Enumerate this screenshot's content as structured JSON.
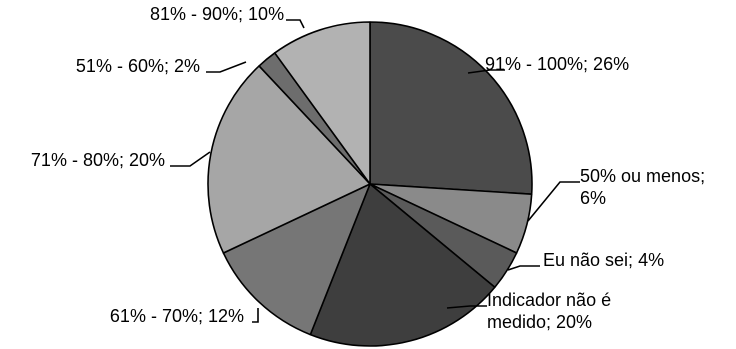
{
  "chart_data": {
    "type": "pie",
    "title": "",
    "slices": [
      {
        "label": "91% - 100%; 26%",
        "value": 26,
        "color": "#4b4b4b"
      },
      {
        "label": "50% ou menos; 6%",
        "value": 6,
        "color": "#8a8a8a"
      },
      {
        "label": "Eu não sei; 4%",
        "value": 4,
        "color": "#5a5a5a"
      },
      {
        "label": "Indicador não é medido; 20%",
        "value": 20,
        "color": "#3e3e3e"
      },
      {
        "label": "61% - 70%; 12%",
        "value": 12,
        "color": "#767676"
      },
      {
        "label": "71% - 80%; 20%",
        "value": 20,
        "color": "#a6a6a6"
      },
      {
        "label": "51% - 60%; 2%",
        "value": 2,
        "color": "#6d6d6d"
      },
      {
        "label": "81% - 90%; 10%",
        "value": 10,
        "color": "#b2b2b2"
      }
    ],
    "label_lines": [
      [
        "91% - 100%; 26%"
      ],
      [
        "50% ou menos;",
        "6%"
      ],
      [
        "Eu não sei; 4%"
      ],
      [
        "Indicador não é",
        "medido; 20%"
      ],
      [
        "61% - 70%; 12%"
      ],
      [
        "71% - 80%; 20%"
      ],
      [
        "51% - 60%; 2%"
      ],
      [
        "81% - 90%; 10%"
      ]
    ],
    "start_angle_deg": 0,
    "direction": "clockwise"
  }
}
